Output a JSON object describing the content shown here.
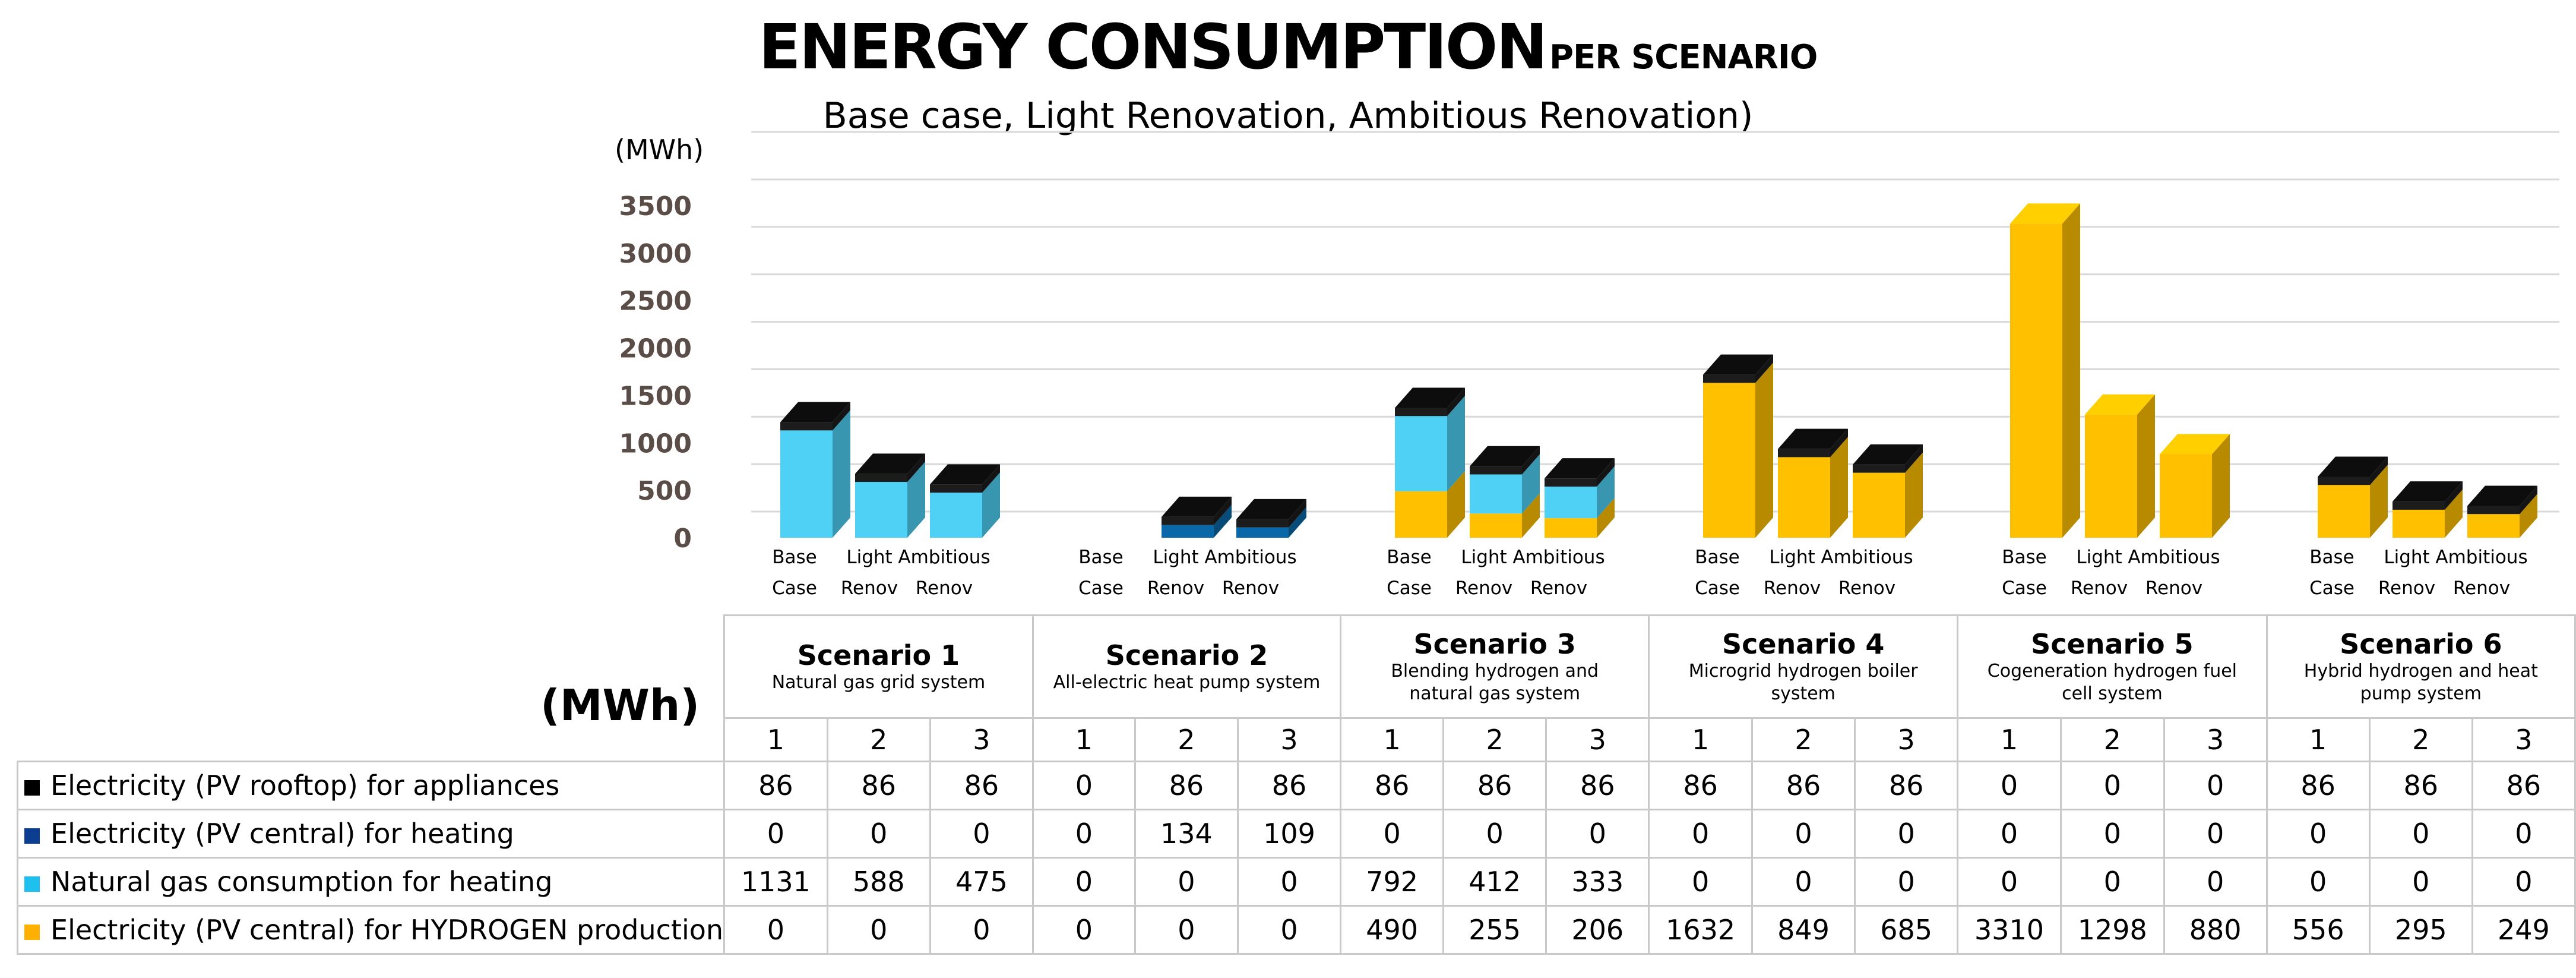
{
  "title": {
    "main": "ENERGY CONSUMPTION",
    "suffix": "PER SCENARIO"
  },
  "subtitle": "Base case, Light Renovation, Ambitious Renovation)",
  "chart_data": {
    "type": "bar",
    "stacked": true,
    "ylabel": "(MWh)",
    "ylim": [
      0,
      3500
    ],
    "yticks": [
      0,
      500,
      1000,
      1500,
      2000,
      2500,
      3000,
      3500
    ],
    "grid": true,
    "categories": [
      [
        "Base",
        "Case"
      ],
      [
        "Light",
        "Renov"
      ],
      [
        "Ambitious",
        "Renov"
      ],
      [
        "Base",
        "Case"
      ],
      [
        "Light",
        "Renov"
      ],
      [
        "Ambitious",
        "Renov"
      ],
      [
        "Base",
        "Case"
      ],
      [
        "Light",
        "Renov"
      ],
      [
        "Ambitious",
        "Renov"
      ],
      [
        "Base",
        "Case"
      ],
      [
        "Light",
        "Renov"
      ],
      [
        "Ambitious",
        "Renov"
      ],
      [
        "Base",
        "Case"
      ],
      [
        "Light",
        "Renov"
      ],
      [
        "Ambitious",
        "Renov"
      ],
      [
        "Base",
        "Case"
      ],
      [
        "Light",
        "Renov"
      ],
      [
        "Ambitious",
        "Renov"
      ]
    ],
    "series": [
      {
        "name": "Electricity (PV central) for HYDROGEN production",
        "color": "#ffc000",
        "values": [
          0,
          0,
          0,
          0,
          0,
          0,
          490,
          255,
          206,
          1632,
          849,
          685,
          3310,
          1298,
          880,
          556,
          295,
          249
        ]
      },
      {
        "name": "Natural gas consumption for heating",
        "color": "#4fd0f5",
        "values": [
          1131,
          588,
          475,
          0,
          0,
          0,
          792,
          412,
          333,
          0,
          0,
          0,
          0,
          0,
          0,
          0,
          0,
          0
        ]
      },
      {
        "name": "Electricity (PV central) for heating",
        "color": "#0a68a8",
        "values": [
          0,
          0,
          0,
          0,
          134,
          109,
          0,
          0,
          0,
          0,
          0,
          0,
          0,
          0,
          0,
          0,
          0,
          0
        ]
      },
      {
        "name": "Electricity (PV rooftop) for appliances",
        "color": "#1c1c1c",
        "values": [
          86,
          86,
          86,
          0,
          86,
          86,
          86,
          86,
          86,
          86,
          86,
          86,
          0,
          0,
          0,
          86,
          86,
          86
        ]
      }
    ]
  },
  "table": {
    "unit": "(MWh)",
    "scenarios": [
      {
        "name": "Scenario 1",
        "desc": "Natural gas grid system"
      },
      {
        "name": "Scenario 2",
        "desc": "All-electric heat pump system"
      },
      {
        "name": "Scenario 3",
        "desc": "Blending hydrogen and natural gas system"
      },
      {
        "name": "Scenario 4",
        "desc": "Microgrid hydrogen boiler system"
      },
      {
        "name": "Scenario 5",
        "desc": "Cogeneration hydrogen fuel cell system"
      },
      {
        "name": "Scenario 6",
        "desc": "Hybrid hydrogen and heat pump system"
      }
    ],
    "sub_headers": [
      "1",
      "2",
      "3"
    ],
    "rows": [
      {
        "label": "Electricity (PV rooftop) for appliances",
        "color": "#000000",
        "values": [
          86,
          86,
          86,
          0,
          86,
          86,
          86,
          86,
          86,
          86,
          86,
          86,
          0,
          0,
          0,
          86,
          86,
          86
        ]
      },
      {
        "label": "Electricity (PV central) for heating",
        "color": "#0b3d91",
        "values": [
          0,
          0,
          0,
          0,
          134,
          109,
          0,
          0,
          0,
          0,
          0,
          0,
          0,
          0,
          0,
          0,
          0,
          0
        ]
      },
      {
        "label": "Natural gas consumption for heating",
        "color": "#1ec0f0",
        "values": [
          1131,
          588,
          475,
          0,
          0,
          0,
          792,
          412,
          333,
          0,
          0,
          0,
          0,
          0,
          0,
          0,
          0,
          0
        ]
      },
      {
        "label": "Electricity (PV central) for HYDROGEN production",
        "color": "#ffb000",
        "values": [
          0,
          0,
          0,
          0,
          0,
          0,
          490,
          255,
          206,
          1632,
          849,
          685,
          3310,
          1298,
          880,
          556,
          295,
          249
        ]
      }
    ]
  }
}
